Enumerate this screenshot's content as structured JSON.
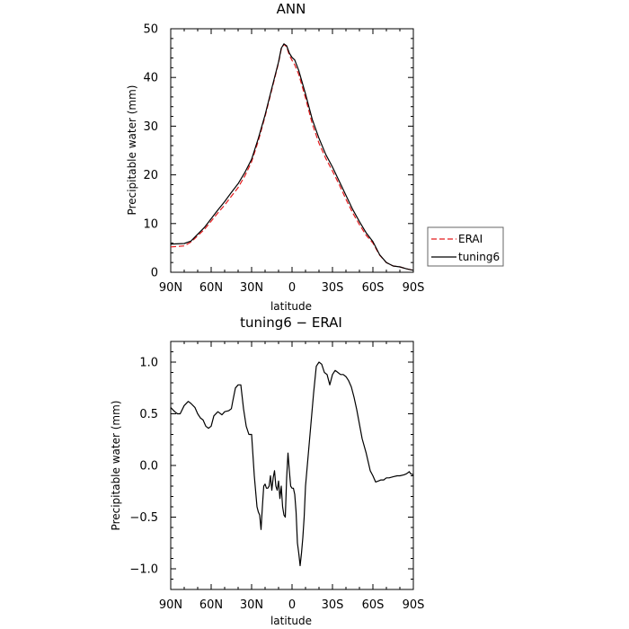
{
  "chart_data": [
    {
      "type": "line",
      "title": "ANN",
      "xlabel": "latitude",
      "ylabel": "Precipitable water (mm)",
      "xlim": [
        90,
        -90
      ],
      "ylim": [
        0,
        50
      ],
      "x_ticks": [
        90,
        60,
        30,
        0,
        -30,
        -60,
        -90
      ],
      "x_tick_labels": [
        "90N",
        "60N",
        "30N",
        "0",
        "30S",
        "60S",
        "90S"
      ],
      "y_ticks": [
        0,
        10,
        20,
        30,
        40,
        50
      ],
      "y_tick_labels": [
        "0",
        "10",
        "20",
        "30",
        "40",
        "50"
      ],
      "legend_position": "right",
      "series": [
        {
          "name": "ERAI",
          "color": "#e41a1c",
          "dash": "dashed",
          "x": [
            90,
            80,
            75,
            70,
            65,
            60,
            55,
            50,
            45,
            40,
            35,
            30,
            25,
            20,
            15,
            10,
            8,
            6,
            4,
            2,
            0,
            -2,
            -5,
            -10,
            -15,
            -20,
            -25,
            -30,
            -35,
            -40,
            -45,
            -50,
            -55,
            -60,
            -65,
            -70,
            -75,
            -80,
            -85,
            -90
          ],
          "y": [
            5.2,
            5.4,
            6.2,
            7.5,
            8.8,
            10.5,
            12.2,
            13.8,
            15.6,
            17.4,
            19.8,
            22.7,
            27.0,
            32.0,
            37.5,
            43.0,
            45.8,
            46.8,
            46.3,
            44.6,
            43.5,
            42.6,
            40.6,
            35.8,
            30.5,
            26.5,
            23.4,
            20.8,
            18.0,
            15.0,
            12.2,
            9.8,
            7.6,
            6.0,
            3.5,
            2.0,
            1.3,
            1.1,
            0.7,
            0.4
          ]
        },
        {
          "name": "tuning6",
          "color": "#000000",
          "dash": "solid",
          "x": [
            90,
            80,
            75,
            70,
            65,
            60,
            55,
            50,
            45,
            40,
            35,
            30,
            25,
            20,
            15,
            10,
            8,
            6,
            4,
            2,
            0,
            -2,
            -5,
            -10,
            -15,
            -20,
            -25,
            -30,
            -35,
            -40,
            -45,
            -50,
            -55,
            -60,
            -65,
            -70,
            -75,
            -80,
            -85,
            -90
          ],
          "y": [
            5.8,
            5.9,
            6.4,
            7.8,
            9.2,
            11.0,
            12.8,
            14.5,
            16.4,
            18.2,
            20.5,
            23.2,
            27.5,
            32.3,
            37.8,
            43.2,
            46.0,
            46.9,
            46.5,
            45.0,
            44.1,
            43.6,
            41.4,
            36.6,
            31.4,
            27.5,
            24.2,
            21.6,
            18.7,
            15.8,
            12.9,
            10.4,
            8.1,
            6.3,
            3.6,
            2.0,
            1.3,
            1.1,
            0.7,
            0.4
          ]
        }
      ]
    },
    {
      "type": "line",
      "title": "tuning6 − ERAI",
      "xlabel": "latitude",
      "ylabel": "Precipitable water (mm)",
      "xlim": [
        90,
        -90
      ],
      "ylim": [
        -1.2,
        1.2
      ],
      "x_ticks": [
        90,
        60,
        30,
        0,
        -30,
        -60,
        -90
      ],
      "x_tick_labels": [
        "90N",
        "60N",
        "30N",
        "0",
        "30S",
        "60S",
        "90S"
      ],
      "y_ticks": [
        -1.0,
        -0.5,
        0.0,
        0.5,
        1.0
      ],
      "y_tick_labels": [
        "−1.0",
        "−0.5",
        "0.0",
        "0.5",
        "1.0"
      ],
      "series": [
        {
          "color": "#000000",
          "dash": "solid",
          "x": [
            90,
            87,
            85,
            83,
            80,
            77,
            75,
            72,
            70,
            68,
            66,
            64,
            62,
            60,
            58,
            55,
            52,
            50,
            47,
            45,
            44,
            42,
            40,
            38,
            36,
            34,
            32,
            30,
            28,
            27,
            26,
            25,
            24,
            23,
            22,
            21,
            20,
            19,
            18,
            17,
            16,
            15,
            14,
            13,
            12,
            11,
            10,
            9,
            8,
            7,
            6,
            5,
            4,
            3,
            2,
            1,
            0,
            -1,
            -2,
            -3,
            -4,
            -5,
            -6,
            -7,
            -8,
            -9,
            -10,
            -12,
            -14,
            -16,
            -18,
            -20,
            -22,
            -24,
            -26,
            -28,
            -30,
            -32,
            -34,
            -36,
            -38,
            -40,
            -42,
            -44,
            -46,
            -48,
            -50,
            -52,
            -55,
            -58,
            -60,
            -62,
            -64,
            -66,
            -68,
            -70,
            -72,
            -75,
            -78,
            -80,
            -83,
            -85,
            -87,
            -88,
            -90
          ],
          "y": [
            0.56,
            0.52,
            0.5,
            0.5,
            0.58,
            0.62,
            0.6,
            0.56,
            0.5,
            0.46,
            0.44,
            0.38,
            0.36,
            0.38,
            0.48,
            0.52,
            0.49,
            0.52,
            0.53,
            0.55,
            0.62,
            0.75,
            0.78,
            0.78,
            0.55,
            0.38,
            0.3,
            0.3,
            -0.1,
            -0.25,
            -0.4,
            -0.45,
            -0.48,
            -0.62,
            -0.4,
            -0.2,
            -0.18,
            -0.22,
            -0.22,
            -0.2,
            -0.1,
            -0.24,
            -0.12,
            -0.05,
            -0.2,
            -0.24,
            -0.15,
            -0.32,
            -0.2,
            -0.4,
            -0.48,
            -0.5,
            -0.12,
            0.12,
            -0.05,
            -0.2,
            -0.22,
            -0.22,
            -0.28,
            -0.45,
            -0.75,
            -0.85,
            -0.97,
            -0.85,
            -0.7,
            -0.5,
            -0.2,
            0.1,
            0.4,
            0.7,
            0.96,
            1.0,
            0.98,
            0.9,
            0.88,
            0.78,
            0.88,
            0.92,
            0.9,
            0.88,
            0.88,
            0.86,
            0.82,
            0.76,
            0.66,
            0.54,
            0.4,
            0.26,
            0.12,
            -0.05,
            -0.1,
            -0.16,
            -0.15,
            -0.14,
            -0.14,
            -0.12,
            -0.12,
            -0.11,
            -0.1,
            -0.1,
            -0.09,
            -0.08,
            -0.06,
            -0.08,
            -0.09
          ]
        }
      ]
    }
  ]
}
